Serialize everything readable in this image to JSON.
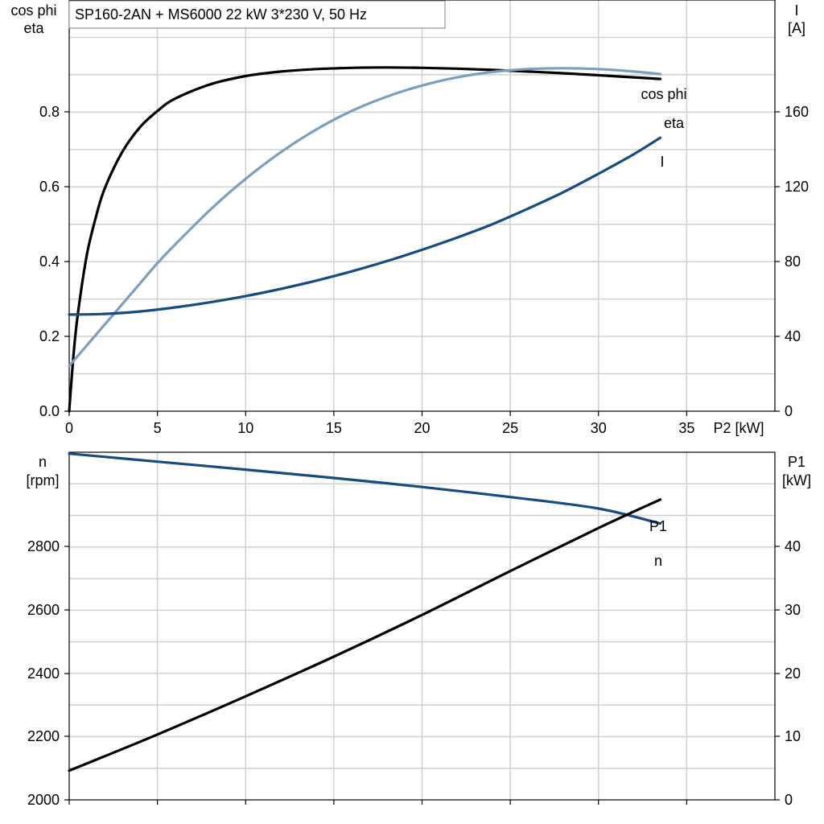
{
  "title": "SP160-2AN + MS6000   22 kW   3*230 V, 50 Hz",
  "chart_data": [
    {
      "type": "line",
      "x_label": "P2 [kW]",
      "x_ticks": [
        "0",
        "5",
        "10",
        "15",
        "20",
        "25",
        "30",
        "35"
      ],
      "xlim": [
        0,
        40
      ],
      "left_axis": {
        "label_lines": [
          "cos phi",
          "eta"
        ],
        "ticks": [
          "0.0",
          "0.2",
          "0.4",
          "0.6",
          "0.8"
        ],
        "ylim": [
          0,
          1.0
        ]
      },
      "right_axis": {
        "label_lines": [
          "I",
          "[A]"
        ],
        "ticks": [
          "0",
          "40",
          "80",
          "120",
          "160"
        ],
        "ylim": [
          0,
          200
        ]
      },
      "grid": true,
      "series": [
        {
          "name": "eta",
          "axis": "left",
          "color": "#000000",
          "x": [
            0,
            0.25,
            0.5,
            1,
            1.5,
            2,
            3,
            4,
            5,
            6,
            8,
            10,
            12,
            14,
            16,
            18,
            20,
            22,
            24,
            26,
            28,
            30,
            32,
            33.5
          ],
          "y": [
            0.0,
            0.14,
            0.24,
            0.38,
            0.47,
            0.54,
            0.63,
            0.69,
            0.73,
            0.76,
            0.795,
            0.815,
            0.826,
            0.832,
            0.835,
            0.836,
            0.835,
            0.833,
            0.83,
            0.826,
            0.822,
            0.817,
            0.812,
            0.808
          ]
        },
        {
          "name": "cos phi",
          "axis": "left",
          "color": "#7a9fbf",
          "x": [
            0,
            1,
            2,
            3,
            4,
            5,
            6,
            8,
            10,
            12,
            14,
            16,
            18,
            20,
            22,
            24,
            26,
            28,
            30,
            32,
            33.5
          ],
          "y": [
            0.11,
            0.16,
            0.21,
            0.26,
            0.31,
            0.36,
            0.405,
            0.49,
            0.565,
            0.63,
            0.685,
            0.73,
            0.765,
            0.792,
            0.812,
            0.825,
            0.832,
            0.834,
            0.832,
            0.826,
            0.82
          ]
        },
        {
          "name": "I",
          "axis": "right",
          "color": "#174a7e",
          "x": [
            0,
            2,
            4,
            6,
            8,
            10,
            12,
            14,
            16,
            18,
            20,
            22,
            24,
            26,
            28,
            30,
            32,
            33.5
          ],
          "y": [
            47,
            47.3,
            48.5,
            50.5,
            53,
            56,
            59.5,
            63.5,
            68,
            73,
            78.5,
            84.5,
            91,
            98.5,
            106.5,
            115.5,
            125,
            133
          ]
        }
      ]
    },
    {
      "type": "line",
      "x_label": "",
      "xlim": [
        0,
        40
      ],
      "left_axis": {
        "label_lines": [
          "n",
          "[rpm]"
        ],
        "ticks": [
          "2000",
          "2200",
          "2400",
          "2600",
          "2800"
        ],
        "ylim": [
          2000,
          3000
        ]
      },
      "right_axis": {
        "label_lines": [
          "P1",
          "[kW]"
        ],
        "ticks": [
          "0",
          "10",
          "20",
          "30",
          "40"
        ],
        "ylim": [
          0,
          50
        ]
      },
      "grid": true,
      "series": [
        {
          "name": "n",
          "axis": "left",
          "color": "#174a7e",
          "x": [
            0,
            5,
            10,
            15,
            20,
            25,
            30,
            33.5
          ],
          "y": [
            2996,
            2973,
            2950,
            2926,
            2900,
            2871,
            2838,
            2795
          ]
        },
        {
          "name": "P1",
          "axis": "right",
          "color": "#000000",
          "x": [
            0,
            5,
            10,
            15,
            20,
            25,
            30,
            33.5
          ],
          "y": [
            4.2,
            9.4,
            14.9,
            20.6,
            26.6,
            32.9,
            39.1,
            43.2
          ]
        }
      ]
    }
  ]
}
